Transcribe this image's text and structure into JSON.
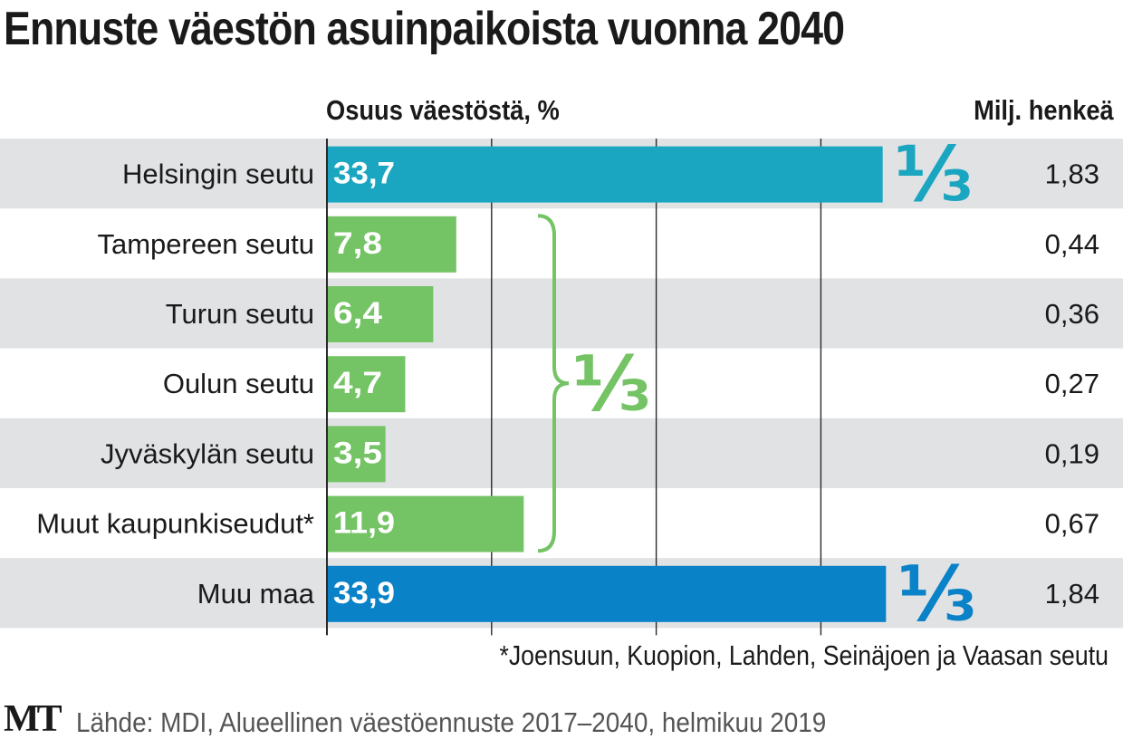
{
  "title": "Ennuste väestön asuinpaikoista vuonna 2040",
  "header_left": "Osuus väestöstä, %",
  "header_right": "Milj. henkeä",
  "fraction_label": "⅓",
  "footnote": "*Joensuun, Kuopion, Lahden, Seinäjoen ja Vaasan seutu",
  "logo": "MT",
  "source": "Lähde: MDI, Alueellinen väestöennuste 2017–2040, helmikuu 2019",
  "colors": {
    "helsinki": "#1aa6c0",
    "cities": "#74c365",
    "muu_maa": "#0a82c8",
    "stripe": "#e1e2e4",
    "grid": "#2a2a2a"
  },
  "chart_data": {
    "type": "bar",
    "orientation": "horizontal",
    "categories": [
      "Helsingin seutu",
      "Tampereen seutu",
      "Turun seutu",
      "Oulun seutu",
      "Jyväskylän seutu",
      "Muut kaupunkiseudut*",
      "Muu maa"
    ],
    "values": [
      33.7,
      7.8,
      6.4,
      4.7,
      3.5,
      11.9,
      33.9
    ],
    "value_labels": [
      "33,7",
      "7,8",
      "6,4",
      "4,7",
      "3,5",
      "11,9",
      "33,9"
    ],
    "millions": [
      "1,83",
      "0,44",
      "0,36",
      "0,27",
      "0,19",
      "0,67",
      "1,84"
    ],
    "color_keys": [
      "helsinki",
      "cities",
      "cities",
      "cities",
      "cities",
      "cities",
      "muu_maa"
    ],
    "grid_values": [
      10,
      20,
      30
    ],
    "xlim": [
      0,
      34
    ],
    "groups": [
      {
        "rows": [
          0
        ],
        "label": "⅓"
      },
      {
        "rows": [
          1,
          2,
          3,
          4,
          5
        ],
        "label": "⅓",
        "bracket": true
      },
      {
        "rows": [
          6
        ],
        "label": "⅓"
      }
    ]
  }
}
